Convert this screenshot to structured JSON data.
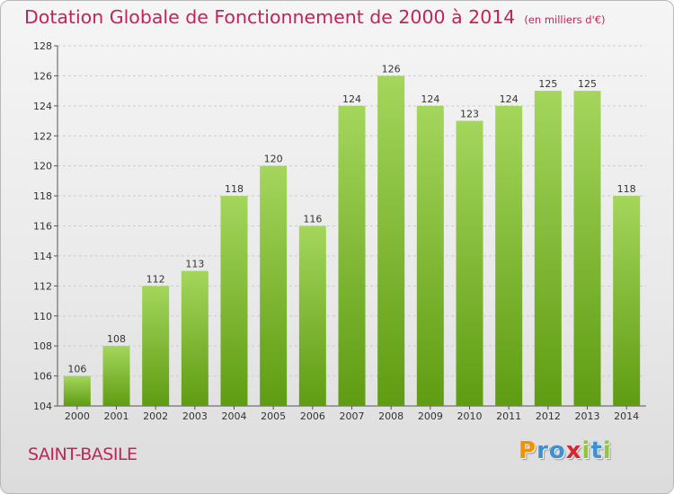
{
  "title": "Dotation Globale de Fonctionnement de 2000 à 2014",
  "unit": "(en milliers d'€)",
  "commune": "SAINT-BASILE",
  "logo": {
    "text": "Proxiti",
    "letters": [
      "P",
      "r",
      "o",
      "x",
      "i",
      "t",
      "i"
    ],
    "colors": [
      "#f39200",
      "#3f8fd1",
      "#3f8fd1",
      "#d6262f",
      "#8dc63f",
      "#3f8fd1",
      "#8dc63f"
    ]
  },
  "colors": {
    "bar_top": "#a4d65c",
    "bar_bottom": "#5f9c12",
    "title": "#c0245b",
    "grid": "#cccccc"
  },
  "chart_data": {
    "type": "bar",
    "categories": [
      "2000",
      "2001",
      "2002",
      "2003",
      "2004",
      "2005",
      "2006",
      "2007",
      "2008",
      "2009",
      "2010",
      "2011",
      "2012",
      "2013",
      "2014"
    ],
    "values": [
      106,
      108,
      112,
      113,
      118,
      120,
      116,
      124,
      126,
      124,
      123,
      124,
      125,
      125,
      118
    ],
    "ylim": [
      104,
      128
    ],
    "yticks": [
      104,
      106,
      108,
      110,
      112,
      114,
      116,
      118,
      120,
      122,
      124,
      126,
      128
    ],
    "grid": true,
    "xlabel": "",
    "ylabel": ""
  }
}
